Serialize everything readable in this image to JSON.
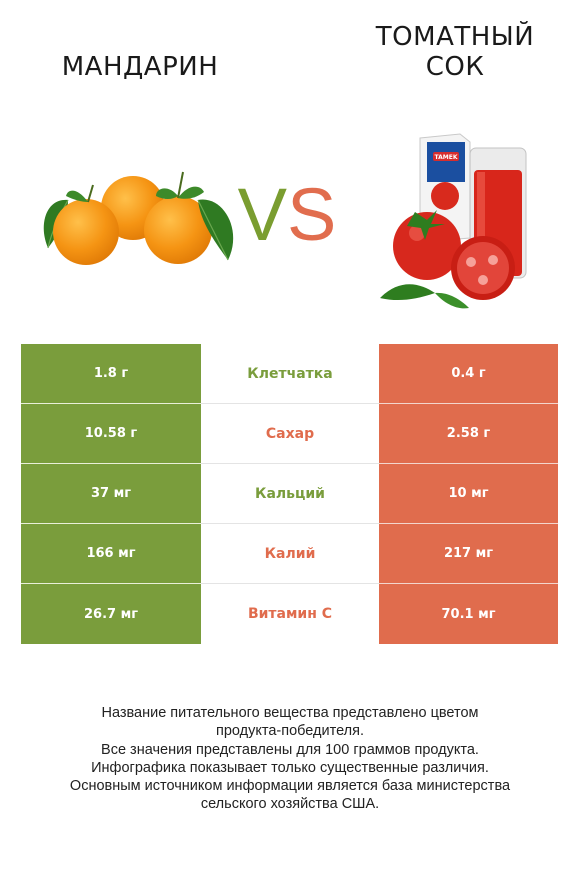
{
  "header": {
    "left_name": "Мандарин",
    "right_name_line1": "Томатный",
    "right_name_line2": "сок",
    "vs_v": "V",
    "vs_s": "S"
  },
  "colors": {
    "left_color": "#7a9d3c",
    "right_color": "#e06c4d"
  },
  "chart_data": {
    "type": "table",
    "columns": [
      "Мандарин",
      "",
      "Томатный сок"
    ],
    "rows": [
      {
        "nutrient": "Клетчатка",
        "left": "1.8 г",
        "right": "0.4 г",
        "winner": "left"
      },
      {
        "nutrient": "Сахар",
        "left": "10.58 г",
        "right": "2.58 г",
        "winner": "right"
      },
      {
        "nutrient": "Кальций",
        "left": "37 мг",
        "right": "10 мг",
        "winner": "left"
      },
      {
        "nutrient": "Калий",
        "left": "166 мг",
        "right": "217 мг",
        "winner": "right"
      },
      {
        "nutrient": "Витамин C",
        "left": "26.7 мг",
        "right": "70.1 мг",
        "winner": "right"
      }
    ]
  },
  "footer": {
    "lines": [
      "Название питательного вещества представлено цветом",
      "продукта-победителя.",
      "Все значения представлены для 100 граммов продукта.",
      "Инфографика показывает только существенные различия.",
      "Основным источником информации является база министерства",
      "сельского хозяйства США."
    ]
  },
  "illustration": {
    "left_icon": "mandarin-icon",
    "right_icon": "tomato-juice-icon",
    "carton_brand": "TAMEK"
  }
}
